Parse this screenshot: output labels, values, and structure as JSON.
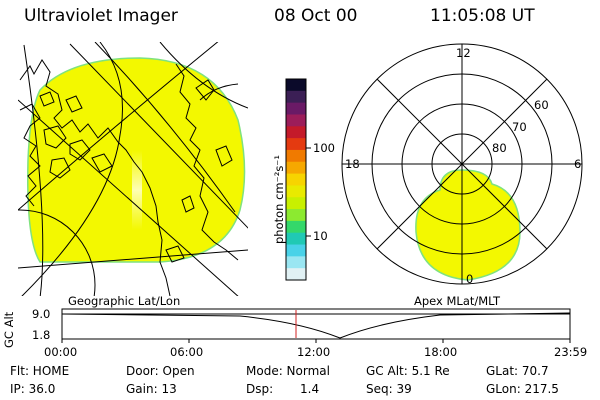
{
  "header": {
    "title": "Ultraviolet Imager",
    "date": "08 Oct 00",
    "time": "11:05:08 UT"
  },
  "colorbar": {
    "label": "photon cm⁻²s⁻¹",
    "ticks": [
      "100",
      "10"
    ],
    "colors": [
      "#0b0a2a",
      "#3b1f55",
      "#6a1a66",
      "#9c1d5a",
      "#c41a2a",
      "#e43a10",
      "#f07a00",
      "#f6a800",
      "#f7d400",
      "#e9ea00",
      "#c8f000",
      "#8cea30",
      "#34d86a",
      "#20c9b4",
      "#49d2e8",
      "#9ae6f2",
      "#e1f1f4"
    ]
  },
  "geo_panel": {
    "label": "Geographic Lat/Lon",
    "fill_color": "#f3f800",
    "edge_color": "#7fe27f"
  },
  "apex_panel": {
    "label": "Apex MLat/MLT",
    "mlt_labels": [
      "12",
      "18",
      "6",
      "0"
    ],
    "lat_labels": [
      "60",
      "70",
      "80"
    ],
    "fill_color": "#f3f800"
  },
  "altitude_plot": {
    "ylabel": "GC Alt",
    "yticks": [
      "9.0",
      "1.8"
    ],
    "xticks": [
      "00:00",
      "06:00",
      "12:00",
      "18:00",
      "23:59"
    ],
    "marker_color": "#d02020"
  },
  "info": {
    "flt": "Flt: HOME",
    "ip": "IP: 36.0",
    "door": "Door: Open",
    "gain": "Gain: 13",
    "mode": "Mode: Normal",
    "dsp_label": "Dsp:",
    "dsp_value": "1.4",
    "gc_alt": "GC Alt: 5.1 Re",
    "seq": "Seq: 39",
    "glat": "GLat: 70.7",
    "glon": "GLon: 217.5"
  }
}
